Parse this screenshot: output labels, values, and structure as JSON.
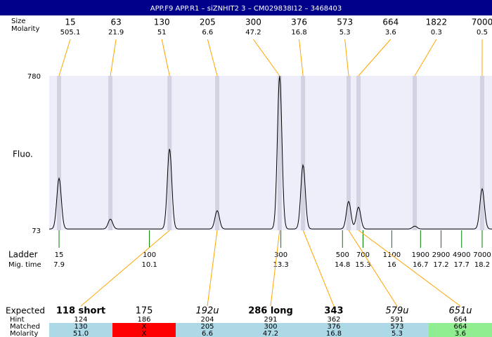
{
  "header": {
    "title": "APP.F9  APP.R1 – siZNHIT2 3 – CM029838I12 – 3468403"
  },
  "top": {
    "size_label": "Size",
    "molarity_label": "Molarity",
    "sizes": [
      15,
      63,
      130,
      205,
      300,
      376,
      573,
      664,
      1822,
      7000
    ],
    "molarities": [
      505.1,
      21.9,
      51,
      6.6,
      47.2,
      16.8,
      5.3,
      3.6,
      0.3,
      0.5
    ]
  },
  "trace": {
    "y_label": "Fluo.",
    "ylim": [
      73,
      780
    ],
    "yticks": [
      73,
      780
    ],
    "xlim": [
      7.66,
      18.44
    ],
    "baseline": 79,
    "peak_times": [
      7.9,
      9.15,
      10.59,
      11.75,
      13.27,
      13.84,
      14.95,
      15.19,
      16.56,
      18.2
    ],
    "peak_heights": [
      311,
      124,
      446,
      163,
      780,
      372,
      205,
      179,
      92,
      263
    ]
  },
  "ladder": {
    "label": "Ladder",
    "time_label": "Mig. time",
    "sizes": [
      15,
      100,
      300,
      500,
      700,
      1100,
      1900,
      2900,
      4900,
      7000
    ],
    "times": [
      7.9,
      10.1,
      13.3,
      14.8,
      15.3,
      16,
      16.7,
      17.2,
      17.7,
      18.2
    ]
  },
  "table": {
    "row_labels": [
      "Expected",
      "Hint",
      "Matched",
      "Molarity"
    ],
    "expected": [
      "118 short",
      "175",
      "192u",
      "286 long",
      "343",
      "579u",
      "651u"
    ],
    "hint": [
      "124",
      "186",
      "204",
      "291",
      "362",
      "591",
      "664"
    ],
    "matched": [
      "130",
      "X",
      "205",
      "300",
      "376",
      "573",
      "664"
    ],
    "molarity": [
      "51.0",
      "X",
      "6.6",
      "47.2",
      "16.8",
      "5.3",
      "3.6"
    ]
  }
}
